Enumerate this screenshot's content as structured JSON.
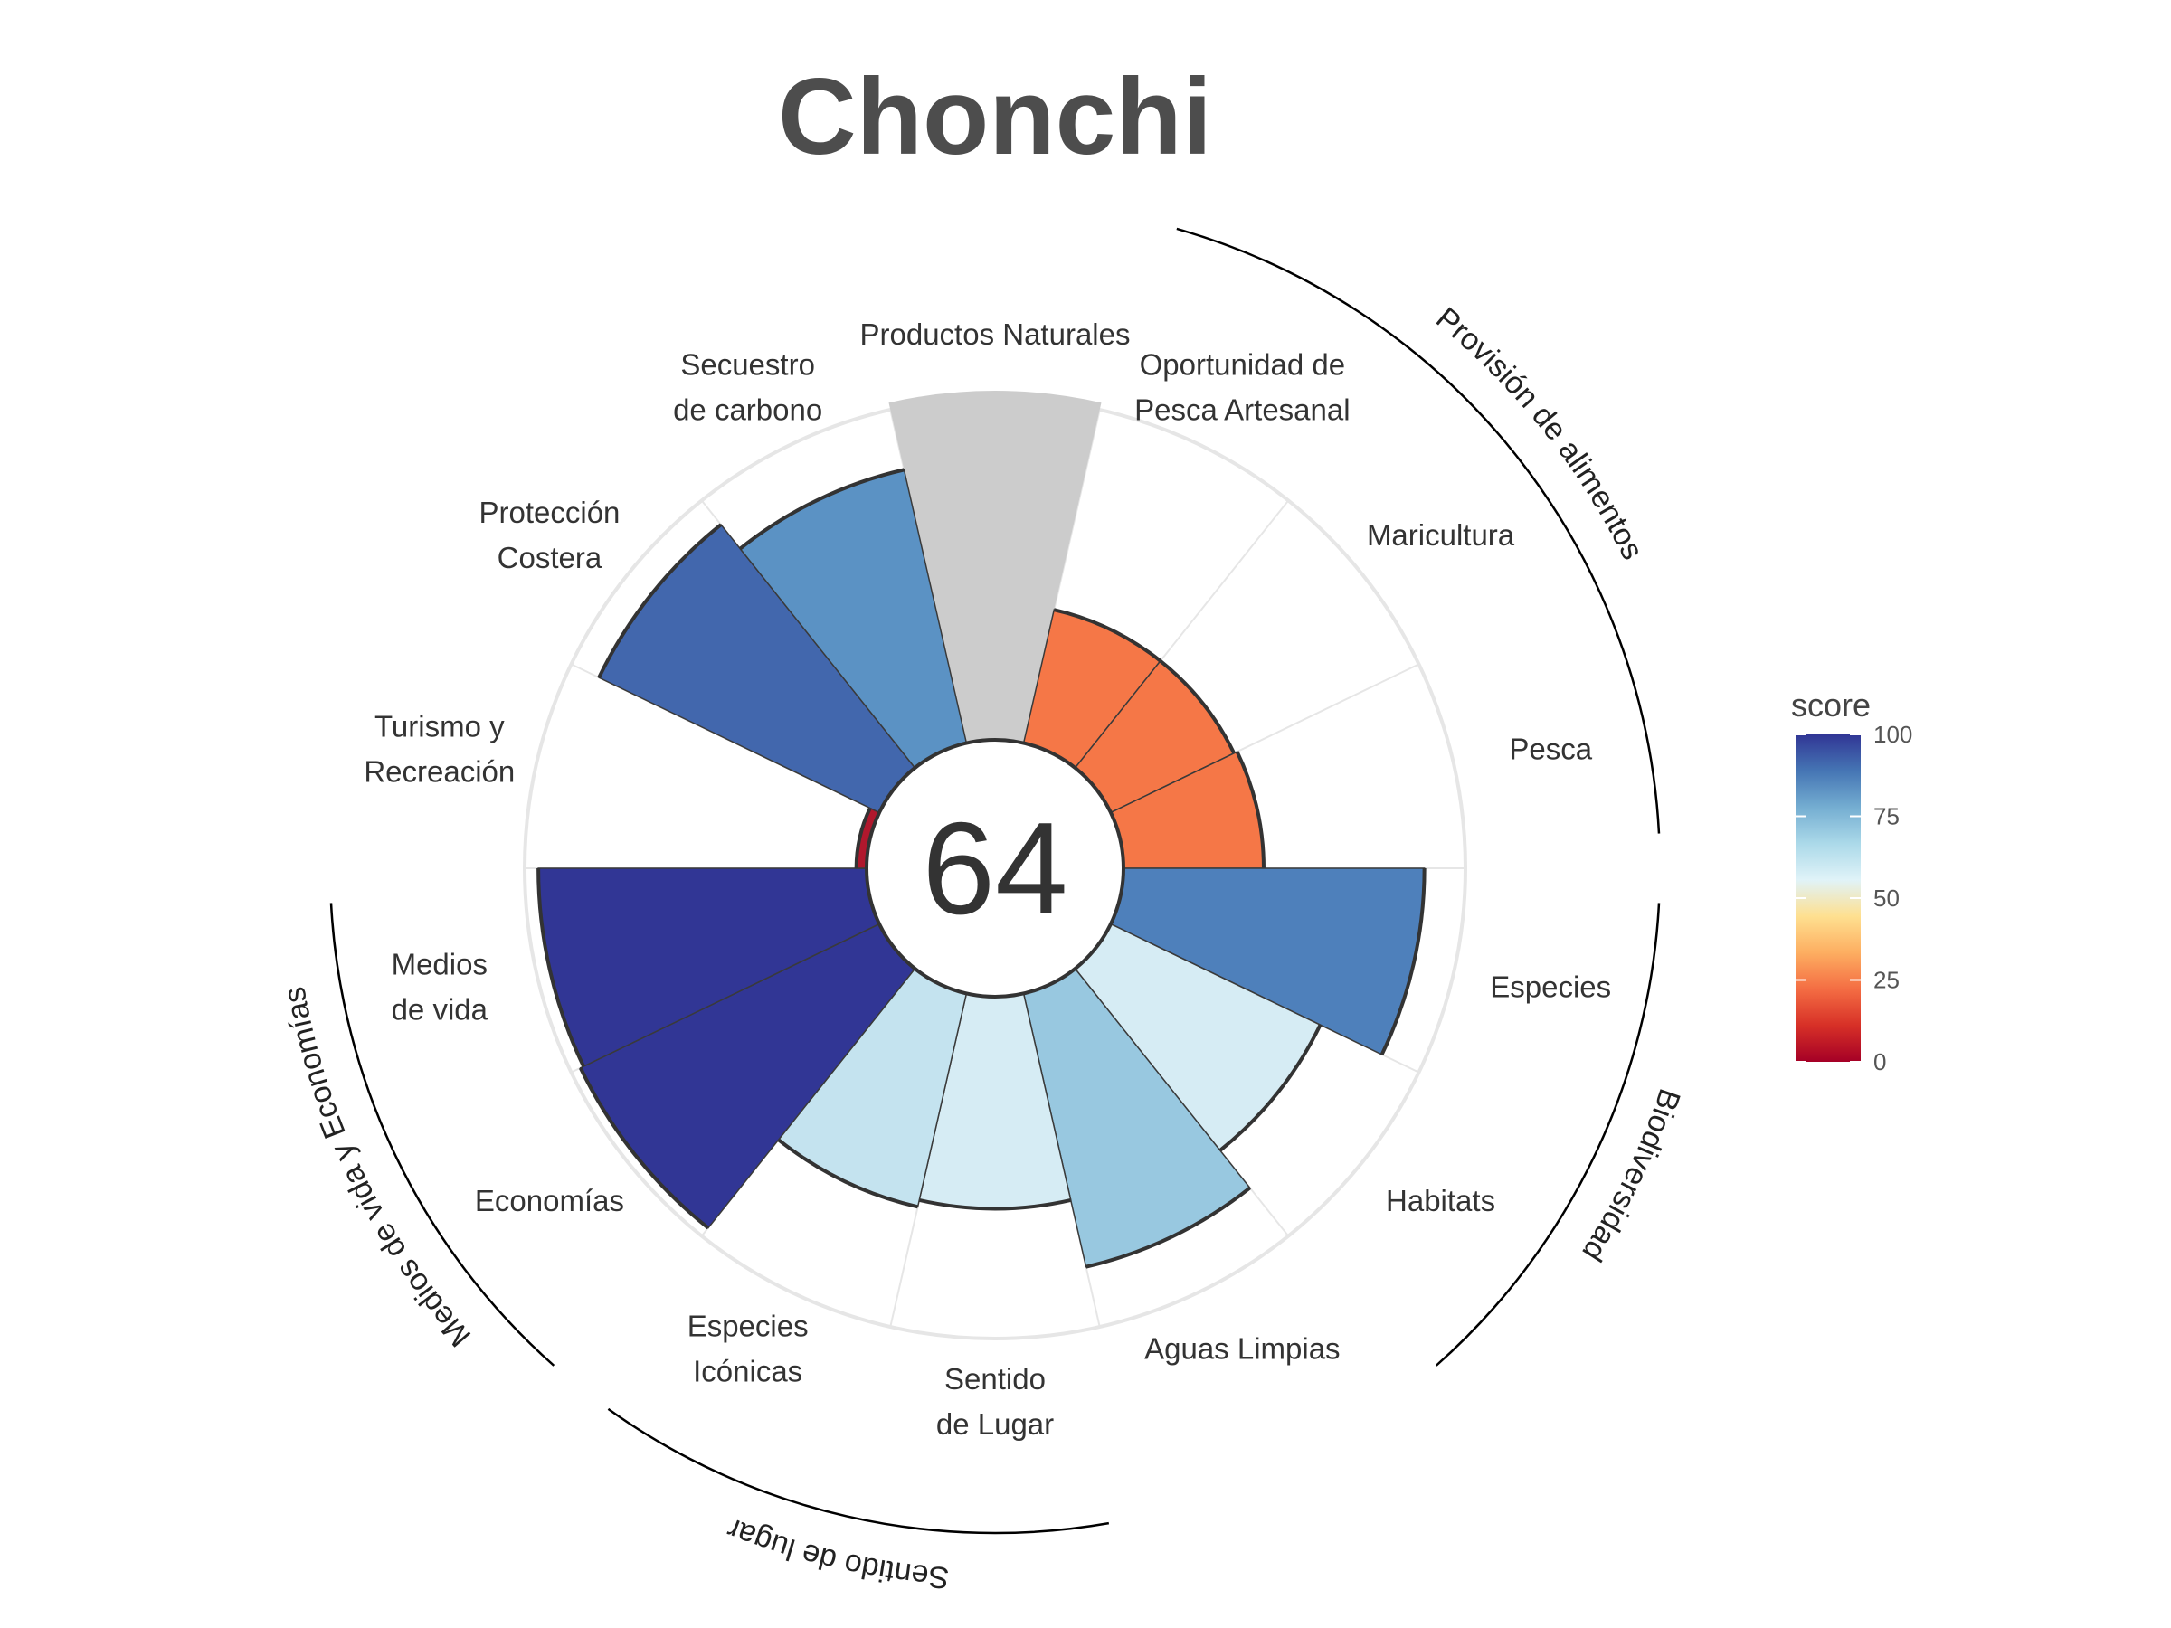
{
  "title": "Chonchi",
  "center_score": "64",
  "colors": {
    "title": "#4d4d4d",
    "na_fill": "#cccccc",
    "grid": "#e6e6e6",
    "outline": "#333333"
  },
  "legend": {
    "title": "score",
    "ticks": [
      "100",
      "75",
      "50",
      "25",
      "0"
    ],
    "tick_values": [
      100,
      75,
      50,
      25,
      0
    ],
    "gradient": [
      "#a50026",
      "#d73027",
      "#f46d43",
      "#fdae61",
      "#fee090",
      "#e0f3f8",
      "#abd9e9",
      "#74add1",
      "#4575b4",
      "#313695"
    ]
  },
  "chart_data": {
    "type": "polar-bar",
    "title": "Chonchi",
    "overall_score": 64,
    "scale": [
      0,
      100
    ],
    "categories": [
      {
        "label": [
          "Productos Naturales"
        ],
        "value": null,
        "color": "#cccccc"
      },
      {
        "label": [
          "Oportunidad de",
          "Pesca Artesanal"
        ],
        "value": 40,
        "color": "#f57747"
      },
      {
        "label": [
          "Maricultura"
        ],
        "value": 40,
        "color": "#f57747"
      },
      {
        "label": [
          "Pesca"
        ],
        "value": 41,
        "color": "#f57747"
      },
      {
        "label": [
          "Especies"
        ],
        "value": 88,
        "color": "#4e80bb"
      },
      {
        "label": [
          "Habitats"
        ],
        "value": 68,
        "color": "#d6ecf4"
      },
      {
        "label": [
          "Aguas Limpias"
        ],
        "value": 82,
        "color": "#98c8e0"
      },
      {
        "label": [
          "Sentido",
          "de Lugar"
        ],
        "value": 62,
        "color": "#d6ecf4"
      },
      {
        "label": [
          "Especies",
          "Icónicas"
        ],
        "value": 64,
        "color": "#c4e3ef"
      },
      {
        "label": [
          "Economías"
        ],
        "value": 97,
        "color": "#313695"
      },
      {
        "label": [
          "Medios",
          "de vida"
        ],
        "value": 96,
        "color": "#313695"
      },
      {
        "label": [
          "Turismo y",
          "Recreación"
        ],
        "value": 3,
        "color": "#b0182d"
      },
      {
        "label": [
          "Protección",
          "Costera"
        ],
        "value": 91,
        "color": "#4267ad"
      },
      {
        "label": [
          "Secuestro",
          "de carbono"
        ],
        "value": 82,
        "color": "#5b92c4"
      }
    ],
    "groups": [
      {
        "name": "Provisión de alimentos",
        "members": [
          "Oportunidad de Pesca Artesanal",
          "Maricultura",
          "Pesca"
        ]
      },
      {
        "name": "Biodiversidad",
        "members": [
          "Especies",
          "Habitats"
        ]
      },
      {
        "name": "Sentido de lugar",
        "members": [
          "Sentido de Lugar",
          "Especies Icónicas"
        ]
      },
      {
        "name": "Medios de vida y Economías",
        "members": [
          "Economías",
          "Medios de vida"
        ]
      }
    ]
  }
}
